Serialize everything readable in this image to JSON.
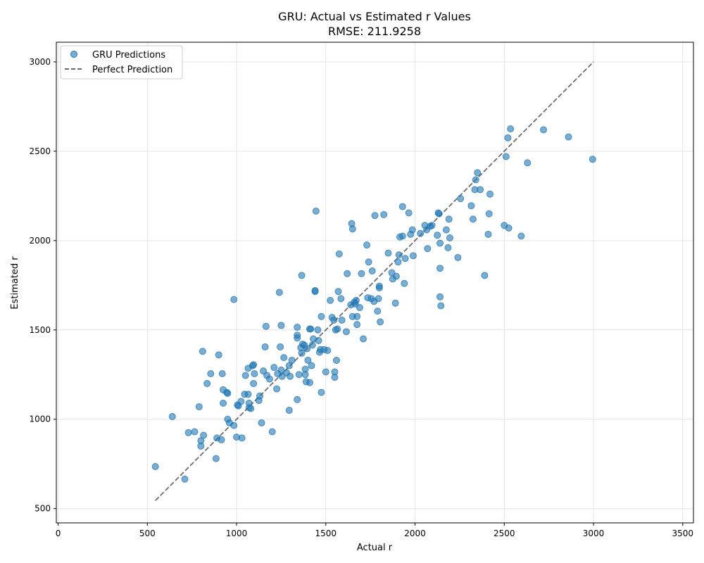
{
  "chart_data": {
    "type": "scatter",
    "title": "GRU: Actual vs Estimated r Values",
    "subtitle": "RMSE: 211.9258",
    "xlabel": "Actual r",
    "ylabel": "Estimated r",
    "xlim": [
      -10,
      3560
    ],
    "ylim": [
      420,
      3110
    ],
    "x_ticks": [
      0,
      500,
      1000,
      1500,
      2000,
      2500,
      3000,
      3500
    ],
    "y_ticks": [
      500,
      1000,
      1500,
      2000,
      2500,
      3000
    ],
    "grid": true,
    "legend_position": "top-left",
    "colors": {
      "points": "#1f77b4",
      "reference_line": "#555555"
    },
    "series": [
      {
        "name": "GRU Predictions",
        "kind": "scatter",
        "points": [
          [
            545,
            735
          ],
          [
            640,
            1015
          ],
          [
            710,
            665
          ],
          [
            730,
            925
          ],
          [
            765,
            930
          ],
          [
            790,
            1070
          ],
          [
            800,
            880
          ],
          [
            800,
            850
          ],
          [
            810,
            1380
          ],
          [
            815,
            910
          ],
          [
            835,
            1200
          ],
          [
            855,
            1255
          ],
          [
            885,
            780
          ],
          [
            890,
            895
          ],
          [
            900,
            1360
          ],
          [
            915,
            885
          ],
          [
            920,
            1255
          ],
          [
            925,
            1165
          ],
          [
            925,
            1090
          ],
          [
            945,
            1150
          ],
          [
            950,
            1145
          ],
          [
            950,
            1000
          ],
          [
            960,
            980
          ],
          [
            985,
            965
          ],
          [
            985,
            1670
          ],
          [
            1000,
            900
          ],
          [
            1005,
            1080
          ],
          [
            1010,
            1075
          ],
          [
            1025,
            1100
          ],
          [
            1030,
            895
          ],
          [
            1045,
            1140
          ],
          [
            1050,
            1245
          ],
          [
            1065,
            1140
          ],
          [
            1065,
            1285
          ],
          [
            1070,
            1065
          ],
          [
            1070,
            1090
          ],
          [
            1080,
            1060
          ],
          [
            1090,
            1300
          ],
          [
            1095,
            1305
          ],
          [
            1095,
            1200
          ],
          [
            1100,
            1255
          ],
          [
            1125,
            1105
          ],
          [
            1130,
            1130
          ],
          [
            1140,
            980
          ],
          [
            1150,
            1270
          ],
          [
            1160,
            1405
          ],
          [
            1165,
            1520
          ],
          [
            1170,
            1245
          ],
          [
            1185,
            1225
          ],
          [
            1200,
            930
          ],
          [
            1210,
            1290
          ],
          [
            1225,
            1170
          ],
          [
            1230,
            1255
          ],
          [
            1240,
            1710
          ],
          [
            1245,
            1405
          ],
          [
            1250,
            1525
          ],
          [
            1250,
            1275
          ],
          [
            1255,
            1240
          ],
          [
            1265,
            1345
          ],
          [
            1280,
            1260
          ],
          [
            1295,
            1050
          ],
          [
            1295,
            1300
          ],
          [
            1300,
            1240
          ],
          [
            1310,
            1330
          ],
          [
            1340,
            1515
          ],
          [
            1340,
            1470
          ],
          [
            1340,
            1455
          ],
          [
            1340,
            1110
          ],
          [
            1350,
            1250
          ],
          [
            1360,
            1400
          ],
          [
            1365,
            1805
          ],
          [
            1365,
            1370
          ],
          [
            1370,
            1420
          ],
          [
            1380,
            1415
          ],
          [
            1385,
            1280
          ],
          [
            1385,
            1250
          ],
          [
            1390,
            1210
          ],
          [
            1395,
            1395
          ],
          [
            1400,
            1330
          ],
          [
            1410,
            1505
          ],
          [
            1410,
            1205
          ],
          [
            1415,
            1505
          ],
          [
            1420,
            1300
          ],
          [
            1425,
            1415
          ],
          [
            1430,
            1450
          ],
          [
            1440,
            1720
          ],
          [
            1440,
            1715
          ],
          [
            1445,
            2165
          ],
          [
            1455,
            1500
          ],
          [
            1460,
            1440
          ],
          [
            1465,
            1375
          ],
          [
            1470,
            1390
          ],
          [
            1475,
            1575
          ],
          [
            1475,
            1150
          ],
          [
            1490,
            1390
          ],
          [
            1500,
            1265
          ],
          [
            1510,
            1385
          ],
          [
            1525,
            1665
          ],
          [
            1535,
            1570
          ],
          [
            1545,
            1555
          ],
          [
            1550,
            1265
          ],
          [
            1550,
            1235
          ],
          [
            1555,
            1500
          ],
          [
            1560,
            1330
          ],
          [
            1565,
            1505
          ],
          [
            1570,
            1715
          ],
          [
            1575,
            1925
          ],
          [
            1585,
            1675
          ],
          [
            1590,
            1555
          ],
          [
            1615,
            1490
          ],
          [
            1620,
            1815
          ],
          [
            1640,
            1640
          ],
          [
            1645,
            2095
          ],
          [
            1650,
            2065
          ],
          [
            1650,
            1575
          ],
          [
            1660,
            1655
          ],
          [
            1665,
            1645
          ],
          [
            1670,
            1665
          ],
          [
            1675,
            1530
          ],
          [
            1675,
            1575
          ],
          [
            1690,
            1625
          ],
          [
            1700,
            1815
          ],
          [
            1710,
            1450
          ],
          [
            1730,
            1975
          ],
          [
            1735,
            1680
          ],
          [
            1740,
            1880
          ],
          [
            1755,
            1675
          ],
          [
            1760,
            1830
          ],
          [
            1770,
            1660
          ],
          [
            1775,
            2140
          ],
          [
            1790,
            1605
          ],
          [
            1795,
            1675
          ],
          [
            1800,
            1745
          ],
          [
            1800,
            1735
          ],
          [
            1805,
            1545
          ],
          [
            1825,
            2145
          ],
          [
            1850,
            1930
          ],
          [
            1870,
            1820
          ],
          [
            1875,
            1785
          ],
          [
            1890,
            1650
          ],
          [
            1895,
            1800
          ],
          [
            1905,
            1880
          ],
          [
            1910,
            1920
          ],
          [
            1915,
            2020
          ],
          [
            1930,
            2190
          ],
          [
            1930,
            2025
          ],
          [
            1940,
            1760
          ],
          [
            1945,
            1900
          ],
          [
            1965,
            2155
          ],
          [
            1975,
            2035
          ],
          [
            1985,
            2060
          ],
          [
            1990,
            1915
          ],
          [
            2030,
            2040
          ],
          [
            2055,
            2085
          ],
          [
            2065,
            2060
          ],
          [
            2070,
            1955
          ],
          [
            2085,
            2080
          ],
          [
            2095,
            2085
          ],
          [
            2125,
            2030
          ],
          [
            2130,
            2155
          ],
          [
            2135,
            2150
          ],
          [
            2140,
            1985
          ],
          [
            2140,
            1845
          ],
          [
            2140,
            1685
          ],
          [
            2145,
            1635
          ],
          [
            2175,
            2060
          ],
          [
            2185,
            1960
          ],
          [
            2190,
            2120
          ],
          [
            2195,
            2015
          ],
          [
            2240,
            1905
          ],
          [
            2255,
            2235
          ],
          [
            2315,
            2195
          ],
          [
            2325,
            2120
          ],
          [
            2335,
            2285
          ],
          [
            2340,
            2340
          ],
          [
            2350,
            2380
          ],
          [
            2365,
            2285
          ],
          [
            2390,
            1805
          ],
          [
            2410,
            2035
          ],
          [
            2415,
            2150
          ],
          [
            2420,
            2260
          ],
          [
            2500,
            2085
          ],
          [
            2510,
            2470
          ],
          [
            2520,
            2575
          ],
          [
            2525,
            2070
          ],
          [
            2535,
            2625
          ],
          [
            2595,
            2025
          ],
          [
            2630,
            2435
          ],
          [
            2720,
            2620
          ],
          [
            2860,
            2580
          ],
          [
            2995,
            2455
          ]
        ]
      },
      {
        "name": "Perfect Prediction",
        "kind": "line",
        "points": [
          [
            545,
            545
          ],
          [
            3000,
            3000
          ]
        ]
      }
    ]
  }
}
